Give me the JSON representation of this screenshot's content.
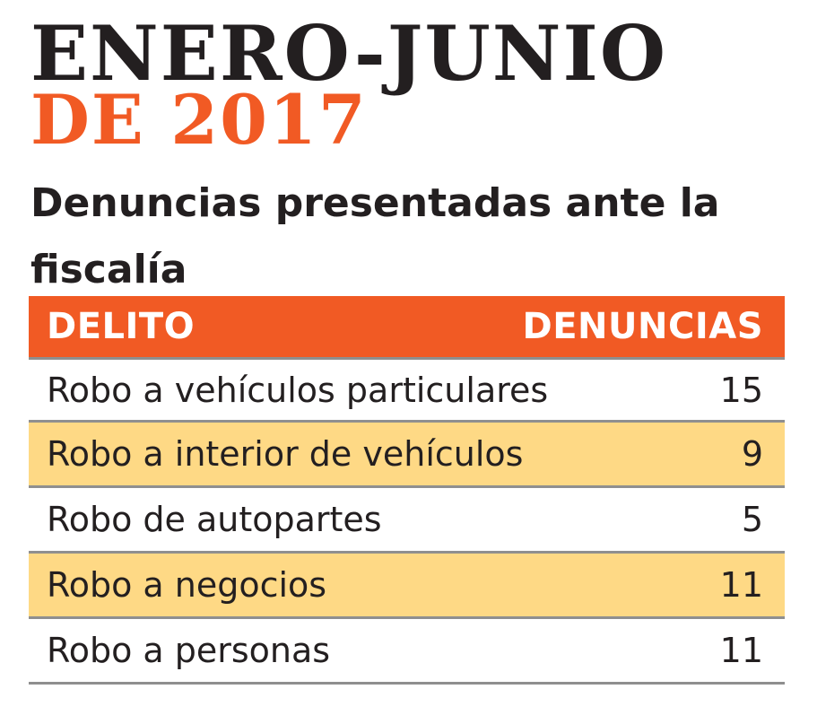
{
  "title": {
    "line1": "ENERO-JUNIO",
    "line2": "DE 2017",
    "line1_color": "#231f20",
    "line2_color": "#f15a24"
  },
  "subtitle": "Denuncias presentadas ante la fiscalía",
  "table": {
    "header_color": "#f15a24",
    "alt_row_color": "#fed985",
    "headers": {
      "crime": "DELITO",
      "count": "DENUNCIAS"
    },
    "rows": [
      {
        "crime": "Robo a vehículos particulares",
        "count": "15"
      },
      {
        "crime": "Robo a interior de vehículos",
        "count": "9"
      },
      {
        "crime": "Robo de autopartes",
        "count": "5"
      },
      {
        "crime": "Robo a negocios",
        "count": "11"
      },
      {
        "crime": "Robo a personas",
        "count": "11"
      }
    ]
  }
}
